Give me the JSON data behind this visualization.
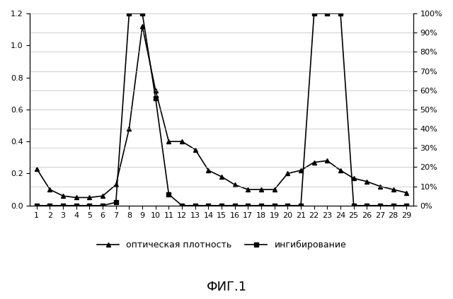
{
  "x": [
    1,
    2,
    3,
    4,
    5,
    6,
    7,
    8,
    9,
    10,
    11,
    12,
    13,
    14,
    15,
    16,
    17,
    18,
    19,
    20,
    21,
    22,
    23,
    24,
    25,
    26,
    27,
    28,
    29
  ],
  "optical_density": [
    0.23,
    0.1,
    0.06,
    0.05,
    0.05,
    0.06,
    0.13,
    0.48,
    1.12,
    0.72,
    0.4,
    0.4,
    0.35,
    0.22,
    0.18,
    0.13,
    0.1,
    0.1,
    0.1,
    0.2,
    0.22,
    0.27,
    0.28,
    0.22,
    0.17,
    0.15,
    0.12,
    0.1,
    0.08
  ],
  "inhibition": [
    0.0,
    0.0,
    0.0,
    0.0,
    0.0,
    0.0,
    0.02,
    1.2,
    1.2,
    0.67,
    0.07,
    0.0,
    0.0,
    0.0,
    0.0,
    0.0,
    0.0,
    0.0,
    0.0,
    0.0,
    0.0,
    1.2,
    1.2,
    1.2,
    0.0,
    0.0,
    0.0,
    0.0,
    0.0
  ],
  "ylim_left": [
    0,
    1.2
  ],
  "ylim_right": [
    0,
    1.2
  ],
  "yticks_left": [
    0,
    0.2,
    0.4,
    0.6,
    0.8,
    1.0,
    1.2
  ],
  "yticks_right_vals": [
    0.0,
    0.12,
    0.24,
    0.36,
    0.48,
    0.6,
    0.72,
    0.84,
    0.96,
    1.08,
    1.2
  ],
  "yticks_right_labels": [
    "0%",
    "10%",
    "20%",
    "30%",
    "40%",
    "50%",
    "60%",
    "70%",
    "80%",
    "90%",
    "100%"
  ],
  "grid_yticks": [
    0.0,
    0.12,
    0.24,
    0.36,
    0.48,
    0.6,
    0.72,
    0.84,
    0.96,
    1.08,
    1.2
  ],
  "legend_optical": "оптическая плотность",
  "legend_inhibition": "ингибирование",
  "title": "ФИГ.1",
  "line_color": "#000000",
  "marker_triangle": "^",
  "marker_square": "s",
  "grid_color": "#bbbbbb",
  "background_color": "#ffffff",
  "title_fontsize": 13,
  "legend_fontsize": 9,
  "tick_fontsize": 8,
  "markersize": 5,
  "linewidth": 1.2
}
